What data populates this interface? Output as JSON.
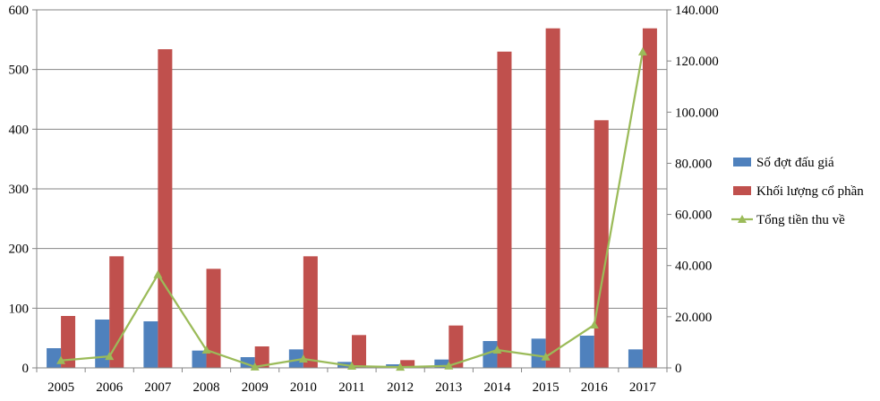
{
  "chart_data": {
    "type": "bar",
    "title": "",
    "categories": [
      "2005",
      "2006",
      "2007",
      "2008",
      "2009",
      "2010",
      "2011",
      "2012",
      "2013",
      "2014",
      "2015",
      "2016",
      "2017"
    ],
    "y_left": {
      "range": [
        0,
        600
      ],
      "ticks": [
        0,
        100,
        200,
        300,
        400,
        500,
        600
      ],
      "tick_labels": [
        "0",
        "100",
        "200",
        "300",
        "400",
        "500",
        "600"
      ]
    },
    "y_right": {
      "range": [
        0,
        140000
      ],
      "ticks": [
        0,
        20000,
        40000,
        60000,
        80000,
        100000,
        120000,
        140000
      ],
      "tick_labels": [
        "0",
        "20.000",
        "40.000",
        "60.000",
        "80.000",
        "100.000",
        "120.000",
        "140.000"
      ]
    },
    "series": [
      {
        "name": "Số đợt đấu giá",
        "type": "bar",
        "axis": "left",
        "color": "#4f81bd",
        "values": [
          33,
          81,
          78,
          29,
          18,
          31,
          10,
          6,
          14,
          45,
          49,
          54,
          31
        ]
      },
      {
        "name": "Khối lượng cổ phần",
        "type": "bar",
        "axis": "left",
        "color": "#c0504d",
        "values": [
          87,
          187,
          534,
          166,
          36,
          187,
          55,
          13,
          71,
          530,
          569,
          415,
          569
        ]
      },
      {
        "name": "Tổng tiền thu về",
        "type": "line",
        "axis": "right",
        "color": "#9bbb59",
        "marker": "triangle",
        "values": [
          2900,
          4500,
          36500,
          7000,
          400,
          3500,
          700,
          300,
          800,
          7000,
          4300,
          16800,
          123600
        ]
      }
    ],
    "grid": true,
    "legend_position": "right"
  }
}
